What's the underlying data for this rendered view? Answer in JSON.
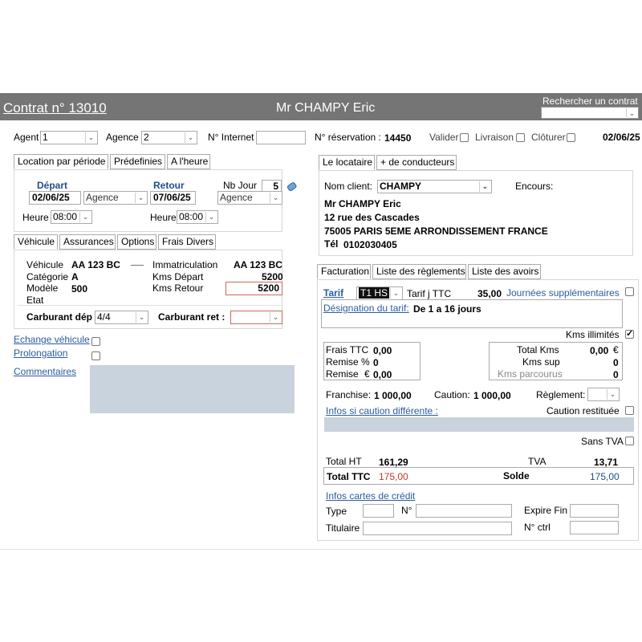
{
  "header": {
    "contract_title": "Contrat n° 13010",
    "client_name": "Mr CHAMPY  Eric",
    "search_label": "Rechercher un contrat"
  },
  "topbar": {
    "agent_label": "Agent",
    "agent_value": "1",
    "agence_label": "Agence",
    "agence_value": "2",
    "internet_label": "N° Internet",
    "reservation_label": "N° réservation :",
    "reservation_value": "14450",
    "valider_label": "Valider",
    "livraison_label": "Livraison",
    "cloturer_label": "Clôturer",
    "date": "02/06/25"
  },
  "period_tabs": [
    "Location par période",
    "Prédefinies",
    "A l'heure"
  ],
  "period": {
    "depart_label": "Départ",
    "depart_date": "02/06/25",
    "depart_agence": "Agence",
    "retour_label": "Retour",
    "retour_date": "07/06/25",
    "retour_agence": "Agence",
    "nb_jour_label": "Nb Jour",
    "nb_jour_value": "5",
    "heure_label": "Heure",
    "depart_heure": "08:00",
    "retour_heure": "08:00"
  },
  "vehicle_tabs": [
    "Véhicule",
    "Assurances",
    "Options",
    "Frais Divers"
  ],
  "vehicle": {
    "vehicule_label": "Véhicule",
    "vehicule_value": "AA 123 BC",
    "categorie_label": "Catégorie",
    "categorie_value": "A",
    "modele_label": "Modèle",
    "modele_value": "500",
    "etat_label": "Etat",
    "immat_label": "Immatriculation",
    "immat_value": "AA 123 BC",
    "kms_depart_label": "Kms Départ",
    "kms_depart_value": "5200",
    "kms_retour_label": "Kms Retour",
    "kms_retour_value": "5200",
    "carburant_dep_label": "Carburant dép :",
    "carburant_dep_value": "4/4",
    "carburant_ret_label": "Carburant ret :"
  },
  "left_links": {
    "echange": "Echange véhicule",
    "prolongation": "Prolongation",
    "commentaires": "Commentaires"
  },
  "renter_tabs": [
    "Le locataire",
    "+ de conducteurs"
  ],
  "renter": {
    "nom_client_label": "Nom client:",
    "nom_client_value": "CHAMPY",
    "encours_label": "Encours:",
    "name": "Mr CHAMPY Eric",
    "street": "12 rue des Cascades",
    "city": "75005 PARIS 5EME ARRONDISSEMENT FRANCE",
    "tel_label": "Tél",
    "tel_value": "0102030405"
  },
  "billing_tabs": [
    "Facturation",
    "Liste des règlements",
    "Liste des avoirs"
  ],
  "billing": {
    "tarif_label": "Tarif",
    "tarif_code": "T1 HS",
    "tarif_type": "Tarif j TTC",
    "tarif_amount": "35,00",
    "journees_sup": "Journées supplémentaires",
    "designation_label": "Désignation du tarif:",
    "designation_value": "De 1 a 16 jours",
    "kms_illimites": "Kms illimités",
    "frais_ttc_label": "Frais TTC",
    "frais_ttc_value": "0,00",
    "remise_pct_label": "Remise %",
    "remise_pct_value": "0",
    "remise_eur_label": "Remise",
    "remise_eur_sym": "€",
    "remise_eur_value": "0,00",
    "total_kms_label": "Total Kms",
    "total_kms_value": "0,00",
    "total_kms_sym": "€",
    "kms_sup_label": "Kms sup",
    "kms_sup_value": "0",
    "kms_parcourus_label": "Kms parcourus",
    "kms_parcourus_value": "0",
    "franchise_label": "Franchise:",
    "franchise_value": "1 000,00",
    "caution_label": "Caution:",
    "caution_value": "1 000,00",
    "reglement_label": "Règlement:",
    "infos_caution": "Infos si caution différente :",
    "caution_restituee": "Caution restituée",
    "sans_tva": "Sans TVA",
    "total_ht_label": "Total HT",
    "total_ht_value": "161,29",
    "tva_label": "TVA",
    "tva_value": "13,71",
    "total_ttc_label": "Total TTC",
    "total_ttc_value": "175,00",
    "solde_label": "Solde",
    "solde_value": "175,00",
    "infos_cartes": "Infos cartes de crédit",
    "type_label": "Type",
    "num_label": "N°",
    "expire_label": "Expire Fin",
    "titulaire_label": "Titulaire",
    "nctrl_label": "N° ctrl"
  },
  "colors": {
    "titlebar": "#767575",
    "link_blue": "#2b5c9e",
    "total_red": "#c0392b",
    "solde_blue": "#1f4e89",
    "comment_box": "#c9d3de"
  }
}
